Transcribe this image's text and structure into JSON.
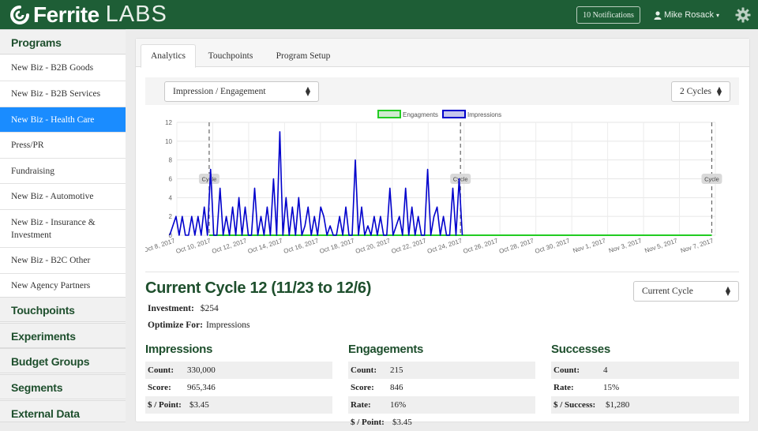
{
  "header": {
    "brand": "Ferrite",
    "brand_suffix": "LABS",
    "notifications": "10 Notifications",
    "user_name": "Mike Rosack",
    "user_caret": "▾"
  },
  "sidebar": {
    "sections": [
      {
        "label": "Programs"
      },
      {
        "label": "Touchpoints"
      },
      {
        "label": "Experiments"
      },
      {
        "label": "Budget Groups"
      },
      {
        "label": "Segments"
      },
      {
        "label": "External Data"
      }
    ],
    "programs": [
      {
        "label": "New Biz - B2B Goods"
      },
      {
        "label": "New Biz - B2B Services"
      },
      {
        "label": "New Biz - Health Care"
      },
      {
        "label": "Press/PR"
      },
      {
        "label": "Fundraising"
      },
      {
        "label": "New Biz - Automotive"
      },
      {
        "label": "New Biz - Insurance & Investment"
      },
      {
        "label": "New Biz - B2C Other"
      },
      {
        "label": "New Agency Partners"
      }
    ],
    "active_program": "New Biz - Health Care"
  },
  "tabs": [
    {
      "label": "Analytics"
    },
    {
      "label": "Touchpoints"
    },
    {
      "label": "Program Setup"
    }
  ],
  "toolbar": {
    "metric_select": "Impression / Engagement",
    "cycles_select": "2 Cycles"
  },
  "colors": {
    "brand_green": "#1e5e36",
    "heading_green": "#1e4f2d",
    "active_blue": "#1a8cff",
    "engagements_line": "#22cc22",
    "impressions_line": "#0000cc"
  },
  "chart_data": {
    "type": "line",
    "legend": [
      "Engagments",
      "Impressions"
    ],
    "legend_position": "top",
    "ylim": [
      0,
      12
    ],
    "yticks": [
      "0",
      "2",
      "4",
      "6",
      "8",
      "10",
      "12"
    ],
    "xticks": [
      "Oct 8, 2017",
      "Oct 10, 2017",
      "Oct 12, 2017",
      "Oct 14, 2017",
      "Oct 16, 2017",
      "Oct 18, 2017",
      "Oct 20, 2017",
      "Oct 22, 2017",
      "Oct 24, 2017",
      "Oct 26, 2017",
      "Oct 28, 2017",
      "Oct 30, 2017",
      "Nov 1, 2017",
      "Nov 3, 2017",
      "Nov 5, 2017",
      "Nov 7, 2017"
    ],
    "grid": true,
    "cycle_markers": [
      {
        "date": "Oct 8, 2017",
        "label": "Cycle"
      },
      {
        "date": "Oct 22, 2017",
        "label": "Cycle"
      },
      {
        "date": "Nov 5, 2017",
        "label": "Cycle"
      }
    ],
    "series": [
      {
        "name": "Engagments",
        "x_start": "Oct 8, 2017",
        "x_end": "Nov 5, 2017",
        "values": [
          0,
          0
        ]
      },
      {
        "name": "Impressions",
        "x_start": "Oct 22, 2017",
        "x_end": "Nov 4, 2017",
        "values": [
          0,
          6,
          0,
          5,
          0,
          0,
          2,
          0,
          3,
          2,
          0,
          7,
          0,
          0,
          2,
          0,
          3,
          0,
          5,
          0,
          2,
          1,
          0,
          5,
          0,
          0,
          2,
          0,
          2,
          0,
          1,
          0,
          3,
          0,
          8,
          0,
          0,
          3,
          0,
          2,
          0,
          0,
          1,
          0,
          2,
          3,
          0,
          2,
          0,
          3,
          1,
          0,
          4,
          0,
          3,
          0,
          4,
          0,
          11,
          0,
          6,
          0,
          3,
          0,
          2,
          0,
          5,
          0,
          0,
          3,
          0,
          4,
          0,
          3,
          0,
          2,
          0,
          5,
          0,
          0,
          7,
          0,
          3,
          0,
          2,
          0,
          2,
          0,
          0,
          2,
          0,
          2,
          1,
          0
        ]
      }
    ]
  },
  "cycle": {
    "title": "Current Cycle 12 (11/23 to 12/6)",
    "select": "Current Cycle",
    "investment_label": "Investment:",
    "investment_value": "$254",
    "optimize_label": "Optimize For:",
    "optimize_value": "Impressions"
  },
  "stats": {
    "impressions": {
      "title": "Impressions",
      "rows": [
        {
          "label": "Count:",
          "value": "330,000"
        },
        {
          "label": "Score:",
          "value": "965,346"
        },
        {
          "label": "$ / Point:",
          "value": "$3.45"
        }
      ]
    },
    "engagements": {
      "title": "Engagements",
      "rows": [
        {
          "label": "Count:",
          "value": "215"
        },
        {
          "label": "Score:",
          "value": "846"
        },
        {
          "label": "Rate:",
          "value": "16%"
        },
        {
          "label": "$ / Point:",
          "value": "$3.45"
        }
      ]
    },
    "successes": {
      "title": "Successes",
      "rows": [
        {
          "label": "Count:",
          "value": "4"
        },
        {
          "label": "Rate:",
          "value": "15%"
        },
        {
          "label": "$ / Success:",
          "value": "$1,280"
        }
      ]
    }
  }
}
